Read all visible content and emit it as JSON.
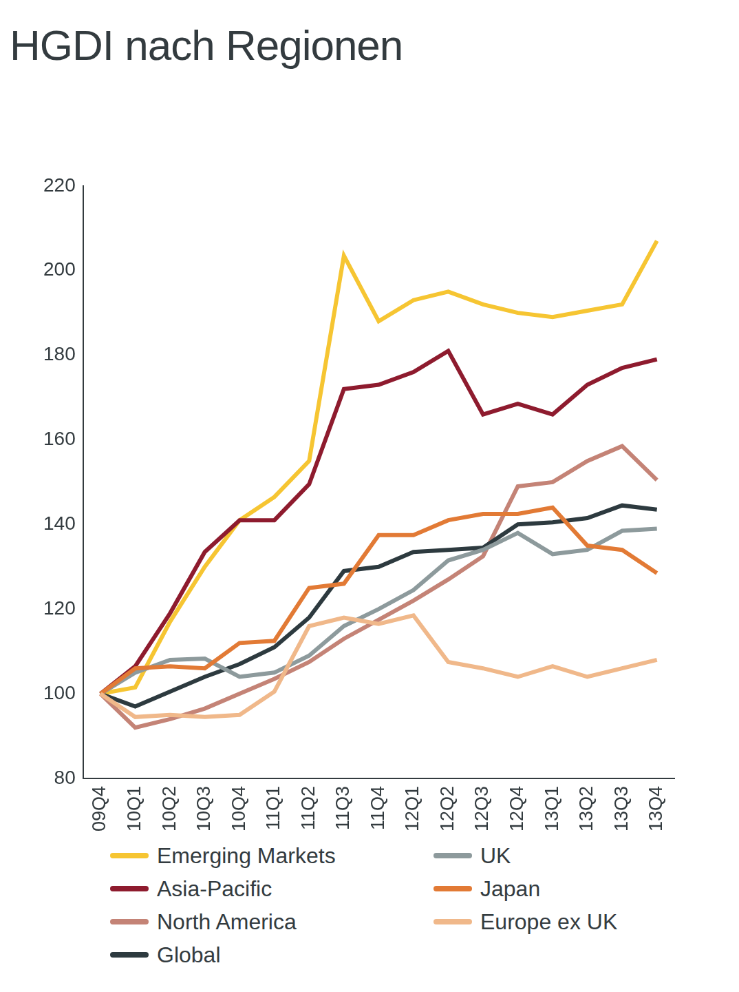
{
  "chart_data": {
    "type": "line",
    "title": "HGDI nach Regionen",
    "categories": [
      "09Q4",
      "10Q1",
      "10Q2",
      "10Q3",
      "10Q4",
      "11Q1",
      "11Q2",
      "11Q3",
      "11Q4",
      "12Q1",
      "12Q2",
      "12Q3",
      "12Q4",
      "13Q1",
      "13Q2",
      "13Q3",
      "13Q4"
    ],
    "series": [
      {
        "name": "Emerging Markets",
        "color": "#f6c532",
        "values": [
          100,
          101.5,
          117,
          130,
          141,
          146.5,
          155,
          203.5,
          188,
          193,
          195,
          192,
          190,
          189,
          190.5,
          192,
          207
        ]
      },
      {
        "name": "Asia-Pacific",
        "color": "#8e1b2e",
        "values": [
          100,
          106.5,
          119,
          133.5,
          141,
          141,
          149.5,
          172,
          173,
          176,
          181,
          166,
          168.5,
          166,
          173,
          177,
          179
        ]
      },
      {
        "name": "North America",
        "color": "#c48376",
        "values": [
          100,
          92,
          94,
          96.5,
          100,
          103.5,
          107.5,
          113,
          117.5,
          122,
          127,
          132.5,
          149,
          150,
          155,
          158.5,
          150.5
        ]
      },
      {
        "name": "Global",
        "color": "#2d3a3f",
        "values": [
          100,
          97,
          100.5,
          104,
          107,
          111,
          118,
          129,
          130,
          133.5,
          134,
          134.5,
          140,
          140.5,
          141.5,
          144.5,
          143.5
        ]
      },
      {
        "name": "UK",
        "color": "#8d9a9c",
        "values": [
          100,
          105,
          108,
          108.3,
          104,
          105,
          109,
          116,
          120,
          124.5,
          131.5,
          134,
          138,
          133,
          134,
          138.5,
          139
        ]
      },
      {
        "name": "Japan",
        "color": "#e27a35",
        "values": [
          100,
          106,
          106.5,
          106,
          112,
          112.5,
          125,
          126,
          137.5,
          137.5,
          141,
          142.5,
          142.5,
          144,
          135,
          134,
          128.5
        ]
      },
      {
        "name": "Europe ex UK",
        "color": "#f0b88a",
        "values": [
          100,
          94.5,
          95,
          94.5,
          95,
          100.5,
          116,
          118,
          116.5,
          118.5,
          107.5,
          106,
          104,
          106.5,
          104,
          106,
          108
        ]
      }
    ],
    "ylim": [
      80,
      220
    ],
    "yticks": [
      80,
      100,
      120,
      140,
      160,
      180,
      200,
      220
    ],
    "grid": false,
    "legend": "bottom"
  }
}
